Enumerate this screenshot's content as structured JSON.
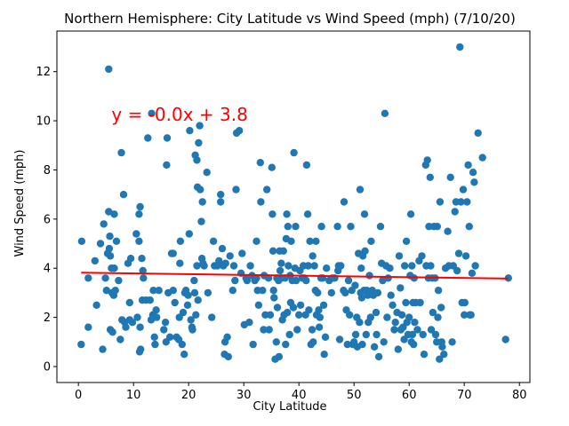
{
  "chart_data": {
    "type": "scatter",
    "title": "Northern Hemisphere: City Latitude vs Wind Speed (mph) (7/10/20)",
    "xlabel": "City Latitude",
    "ylabel": "Wind Speed (mph)",
    "xlim": [
      -3.9,
      81.9
    ],
    "ylim": [
      -0.65,
      13.65
    ],
    "xticks": [
      0,
      10,
      20,
      30,
      40,
      50,
      60,
      70,
      80
    ],
    "yticks": [
      0,
      2,
      4,
      6,
      8,
      10,
      12
    ],
    "grid": false,
    "point_color": "#1f77b4",
    "regression": {
      "equation": "y = -0.0x + 3.8",
      "color": "#ff0000",
      "annotation_x": 6,
      "annotation_y": 10,
      "line": [
        [
          0.5,
          3.82
        ],
        [
          78,
          3.58
        ]
      ]
    },
    "points": [
      [
        0.6,
        5.1
      ],
      [
        0.5,
        0.9
      ],
      [
        1.8,
        1.6
      ],
      [
        1.8,
        3.6
      ],
      [
        3.0,
        4.3
      ],
      [
        3.3,
        2.5
      ],
      [
        4.0,
        5.0
      ],
      [
        4.4,
        0.7
      ],
      [
        4.6,
        5.8
      ],
      [
        4.9,
        3.6
      ],
      [
        5.1,
        3.1
      ],
      [
        5.3,
        4.6
      ],
      [
        5.5,
        12.1
      ],
      [
        5.5,
        6.3
      ],
      [
        5.6,
        4.8
      ],
      [
        5.7,
        5.3
      ],
      [
        5.8,
        1.5
      ],
      [
        5.8,
        4.5
      ],
      [
        6.1,
        3.0
      ],
      [
        6.0,
        4.0
      ],
      [
        6.2,
        1.4
      ],
      [
        6.4,
        2.9
      ],
      [
        6.5,
        6.2
      ],
      [
        6.5,
        4.0
      ],
      [
        6.7,
        3.1
      ],
      [
        6.9,
        5.1
      ],
      [
        7.3,
        3.5
      ],
      [
        7.6,
        1.1
      ],
      [
        7.8,
        8.7
      ],
      [
        7.9,
        1.9
      ],
      [
        8.2,
        7.0
      ],
      [
        8.4,
        1.8
      ],
      [
        8.6,
        1.6
      ],
      [
        9.0,
        4.2
      ],
      [
        9.3,
        2.6
      ],
      [
        9.3,
        1.9
      ],
      [
        9.5,
        4.4
      ],
      [
        9.8,
        1.8
      ],
      [
        10.5,
        5.4
      ],
      [
        10.7,
        2.0
      ],
      [
        11.0,
        6.2
      ],
      [
        11.0,
        5.1
      ],
      [
        11.1,
        0.6
      ],
      [
        11.2,
        6.5
      ],
      [
        11.2,
        1.6
      ],
      [
        11.3,
        0.7
      ],
      [
        11.6,
        2.7
      ],
      [
        11.5,
        4.4
      ],
      [
        11.7,
        3.9
      ],
      [
        11.8,
        3.6
      ],
      [
        12.3,
        2.7
      ],
      [
        12.6,
        9.3
      ],
      [
        13.3,
        10.3
      ],
      [
        13.0,
        2.7
      ],
      [
        13.2,
        1.9
      ],
      [
        13.5,
        2.1
      ],
      [
        13.6,
        3.1
      ],
      [
        13.8,
        1.2
      ],
      [
        13.9,
        0.9
      ],
      [
        14.1,
        2.3
      ],
      [
        14.2,
        2.0
      ],
      [
        14.6,
        3.1
      ],
      [
        15.5,
        1.5
      ],
      [
        15.8,
        1.8
      ],
      [
        15.9,
        1.0
      ],
      [
        16.0,
        8.2
      ],
      [
        16.1,
        9.3
      ],
      [
        16.3,
        3.0
      ],
      [
        16.6,
        1.2
      ],
      [
        16.9,
        4.6
      ],
      [
        17.2,
        4.6
      ],
      [
        17.2,
        3.1
      ],
      [
        17.5,
        2.6
      ],
      [
        17.8,
        1.2
      ],
      [
        18.2,
        1.1
      ],
      [
        18.3,
        2.0
      ],
      [
        18.5,
        5.1
      ],
      [
        18.4,
        4.2
      ],
      [
        18.8,
        0.9
      ],
      [
        19.0,
        2.2
      ],
      [
        19.2,
        0.5
      ],
      [
        19.3,
        3.0
      ],
      [
        19.5,
        3.1
      ],
      [
        19.8,
        2.5
      ],
      [
        19.9,
        2.9
      ],
      [
        20.1,
        5.4
      ],
      [
        20.2,
        9.6
      ],
      [
        20.4,
        1.9
      ],
      [
        20.6,
        1.6
      ],
      [
        20.7,
        1.5
      ],
      [
        21.0,
        3.5
      ],
      [
        21.1,
        3.0
      ],
      [
        21.2,
        8.6
      ],
      [
        21.3,
        2.1
      ],
      [
        21.5,
        8.4
      ],
      [
        21.6,
        7.3
      ],
      [
        21.5,
        4.1
      ],
      [
        21.7,
        2.7
      ],
      [
        21.8,
        9.1
      ],
      [
        22.0,
        9.8
      ],
      [
        22.1,
        7.2
      ],
      [
        22.3,
        5.9
      ],
      [
        22.4,
        4.4
      ],
      [
        22.5,
        6.7
      ],
      [
        22.6,
        4.2
      ],
      [
        22.8,
        4.1
      ],
      [
        23.3,
        7.9
      ],
      [
        23.5,
        3.0
      ],
      [
        24.2,
        2.0
      ],
      [
        24.5,
        5.1
      ],
      [
        24.7,
        4.1
      ],
      [
        25.2,
        4.1
      ],
      [
        25.5,
        4.3
      ],
      [
        25.8,
        6.7
      ],
      [
        25.8,
        7.0
      ],
      [
        26.1,
        4.8
      ],
      [
        26.3,
        4.1
      ],
      [
        26.5,
        0.5
      ],
      [
        26.6,
        1.0
      ],
      [
        26.7,
        4.2
      ],
      [
        27.0,
        1.2
      ],
      [
        27.2,
        0.4
      ],
      [
        27.5,
        4.5
      ],
      [
        28.0,
        3.1
      ],
      [
        28.2,
        4.1
      ],
      [
        28.4,
        3.5
      ],
      [
        28.6,
        7.2
      ],
      [
        28.7,
        9.5
      ],
      [
        29.2,
        9.6
      ],
      [
        29.5,
        3.8
      ],
      [
        29.7,
        4.6
      ],
      [
        30.1,
        1.7
      ],
      [
        30.4,
        3.6
      ],
      [
        30.6,
        3.5
      ],
      [
        31.0,
        1.8
      ],
      [
        31.2,
        4.1
      ],
      [
        31.5,
        3.7
      ],
      [
        31.7,
        0.9
      ],
      [
        32.0,
        3.5
      ],
      [
        32.3,
        3.6
      ],
      [
        32.3,
        5.1
      ],
      [
        32.5,
        3.1
      ],
      [
        32.7,
        2.5
      ],
      [
        33.0,
        8.3
      ],
      [
        33.1,
        6.7
      ],
      [
        33.4,
        3.1
      ],
      [
        33.6,
        1.5
      ],
      [
        33.7,
        3.7
      ],
      [
        33.9,
        2.1
      ],
      [
        34.2,
        7.2
      ],
      [
        34.5,
        3.6
      ],
      [
        34.6,
        1.5
      ],
      [
        34.8,
        2.1
      ],
      [
        35.1,
        8.1
      ],
      [
        35.2,
        6.2
      ],
      [
        35.3,
        4.7
      ],
      [
        35.4,
        3.1
      ],
      [
        35.5,
        2.8
      ],
      [
        35.7,
        0.3
      ],
      [
        35.9,
        1.0
      ],
      [
        36.0,
        3.6
      ],
      [
        36.1,
        2.4
      ],
      [
        36.3,
        3.5
      ],
      [
        36.4,
        0.4
      ],
      [
        36.5,
        4.7
      ],
      [
        36.6,
        3.9
      ],
      [
        36.8,
        4.2
      ],
      [
        36.9,
        3.6
      ],
      [
        37.0,
        1.9
      ],
      [
        37.2,
        4.7
      ],
      [
        37.3,
        2.1
      ],
      [
        37.5,
        3.6
      ],
      [
        37.6,
        0.9
      ],
      [
        37.7,
        5.2
      ],
      [
        37.8,
        6.2
      ],
      [
        37.9,
        2.2
      ],
      [
        38.0,
        5.7
      ],
      [
        38.1,
        4.1
      ],
      [
        38.3,
        1.3
      ],
      [
        38.4,
        3.7
      ],
      [
        38.5,
        2.6
      ],
      [
        38.6,
        5.1
      ],
      [
        38.8,
        3.5
      ],
      [
        39.0,
        2.4
      ],
      [
        39.1,
        8.7
      ],
      [
        39.3,
        4.0
      ],
      [
        39.4,
        5.7
      ],
      [
        39.5,
        3.5
      ],
      [
        39.7,
        1.5
      ],
      [
        40.0,
        2.1
      ],
      [
        40.2,
        3.9
      ],
      [
        40.3,
        2.5
      ],
      [
        40.6,
        3.6
      ],
      [
        40.8,
        4.1
      ],
      [
        41.0,
        3.6
      ],
      [
        41.2,
        2.1
      ],
      [
        41.3,
        3.5
      ],
      [
        41.4,
        8.2
      ],
      [
        41.6,
        6.2
      ],
      [
        41.7,
        4.1
      ],
      [
        41.8,
        2.3
      ],
      [
        42.0,
        5.1
      ],
      [
        42.2,
        0.9
      ],
      [
        42.4,
        1.5
      ],
      [
        42.5,
        4.5
      ],
      [
        42.6,
        1.0
      ],
      [
        42.8,
        4.1
      ],
      [
        43.0,
        3.1
      ],
      [
        43.1,
        5.1
      ],
      [
        43.2,
        2.1
      ],
      [
        43.4,
        3.0
      ],
      [
        43.6,
        2.3
      ],
      [
        43.7,
        1.6
      ],
      [
        43.8,
        2.0
      ],
      [
        44.0,
        3.6
      ],
      [
        44.1,
        5.7
      ],
      [
        44.3,
        3.6
      ],
      [
        44.5,
        2.5
      ],
      [
        44.6,
        0.5
      ],
      [
        44.8,
        1.2
      ],
      [
        45.0,
        4.0
      ],
      [
        45.5,
        3.5
      ],
      [
        45.9,
        3.0
      ],
      [
        46.1,
        3.6
      ],
      [
        46.5,
        3.6
      ],
      [
        47.0,
        5.7
      ],
      [
        47.1,
        3.9
      ],
      [
        47.2,
        4.1
      ],
      [
        47.4,
        1.1
      ],
      [
        47.6,
        4.1
      ],
      [
        48.1,
        3.1
      ],
      [
        48.2,
        6.7
      ],
      [
        48.4,
        3.0
      ],
      [
        48.6,
        2.3
      ],
      [
        48.8,
        0.9
      ],
      [
        49.0,
        3.5
      ],
      [
        49.2,
        2.1
      ],
      [
        49.4,
        5.7
      ],
      [
        49.6,
        3.1
      ],
      [
        49.8,
        0.9
      ],
      [
        50.0,
        1.0
      ],
      [
        50.2,
        3.3
      ],
      [
        50.3,
        1.3
      ],
      [
        50.5,
        2.0
      ],
      [
        50.6,
        0.8
      ],
      [
        50.8,
        4.6
      ],
      [
        51.0,
        1.8
      ],
      [
        51.1,
        7.2
      ],
      [
        51.2,
        3.0
      ],
      [
        51.3,
        4.0
      ],
      [
        51.4,
        2.8
      ],
      [
        51.5,
        0.9
      ],
      [
        51.6,
        4.5
      ],
      [
        51.8,
        3.1
      ],
      [
        51.9,
        6.2
      ],
      [
        52.0,
        4.7
      ],
      [
        52.2,
        1.3
      ],
      [
        52.3,
        3.1
      ],
      [
        52.5,
        2.9
      ],
      [
        52.6,
        1.8
      ],
      [
        52.8,
        3.7
      ],
      [
        53.0,
        2.0
      ],
      [
        53.1,
        5.1
      ],
      [
        53.3,
        3.1
      ],
      [
        53.5,
        2.9
      ],
      [
        53.7,
        0.8
      ],
      [
        54.0,
        2.2
      ],
      [
        54.1,
        1.3
      ],
      [
        54.3,
        3.0
      ],
      [
        54.5,
        0.4
      ],
      [
        54.8,
        5.7
      ],
      [
        55.0,
        4.2
      ],
      [
        55.2,
        3.5
      ],
      [
        55.4,
        1.0
      ],
      [
        55.6,
        10.3
      ],
      [
        55.8,
        4.1
      ],
      [
        56.0,
        2.0
      ],
      [
        56.2,
        3.6
      ],
      [
        56.5,
        4.0
      ],
      [
        56.7,
        2.9
      ],
      [
        57.0,
        2.5
      ],
      [
        57.3,
        1.5
      ],
      [
        57.5,
        1.8
      ],
      [
        57.8,
        2.2
      ],
      [
        58.0,
        0.7
      ],
      [
        58.2,
        4.5
      ],
      [
        58.4,
        3.2
      ],
      [
        58.5,
        1.5
      ],
      [
        58.7,
        2.1
      ],
      [
        58.9,
        1.6
      ],
      [
        59.1,
        1.1
      ],
      [
        59.2,
        4.1
      ],
      [
        59.4,
        2.6
      ],
      [
        59.5,
        5.1
      ],
      [
        59.6,
        1.8
      ],
      [
        59.8,
        1.3
      ],
      [
        60.0,
        2.0
      ],
      [
        60.2,
        3.7
      ],
      [
        60.3,
        6.2
      ],
      [
        60.4,
        1.0
      ],
      [
        60.5,
        4.1
      ],
      [
        60.6,
        1.3
      ],
      [
        60.7,
        2.6
      ],
      [
        60.8,
        0.9
      ],
      [
        60.9,
        3.6
      ],
      [
        61.0,
        1.8
      ],
      [
        61.2,
        2.6
      ],
      [
        61.5,
        1.5
      ],
      [
        61.8,
        4.3
      ],
      [
        62.0,
        2.6
      ],
      [
        62.3,
        4.5
      ],
      [
        62.5,
        1.3
      ],
      [
        62.7,
        0.5
      ],
      [
        63.0,
        8.2
      ],
      [
        63.1,
        4.1
      ],
      [
        63.3,
        8.4
      ],
      [
        63.5,
        3.6
      ],
      [
        63.6,
        5.7
      ],
      [
        63.8,
        7.7
      ],
      [
        63.9,
        4.1
      ],
      [
        64.0,
        1.5
      ],
      [
        64.2,
        3.6
      ],
      [
        64.3,
        2.2
      ],
      [
        64.5,
        5.7
      ],
      [
        64.7,
        3.6
      ],
      [
        64.8,
        1.3
      ],
      [
        65.0,
        1.0
      ],
      [
        65.1,
        5.7
      ],
      [
        65.2,
        2.0
      ],
      [
        65.3,
        3.1
      ],
      [
        65.5,
        0.3
      ],
      [
        65.6,
        6.7
      ],
      [
        65.8,
        2.4
      ],
      [
        65.9,
        1.0
      ],
      [
        66.0,
        0.8
      ],
      [
        66.3,
        0.5
      ],
      [
        66.6,
        4.0
      ],
      [
        67.0,
        5.5
      ],
      [
        67.2,
        4.1
      ],
      [
        67.5,
        7.7
      ],
      [
        67.8,
        1.0
      ],
      [
        68.0,
        4.1
      ],
      [
        68.3,
        6.3
      ],
      [
        68.5,
        6.7
      ],
      [
        68.7,
        3.9
      ],
      [
        69.0,
        4.6
      ],
      [
        69.2,
        13.0
      ],
      [
        69.4,
        6.7
      ],
      [
        69.6,
        2.6
      ],
      [
        69.8,
        7.2
      ],
      [
        70.0,
        2.1
      ],
      [
        70.1,
        2.6
      ],
      [
        70.3,
        4.5
      ],
      [
        70.5,
        6.7
      ],
      [
        70.7,
        8.2
      ],
      [
        70.9,
        5.7
      ],
      [
        71.0,
        2.1
      ],
      [
        71.2,
        2.1
      ],
      [
        71.4,
        3.8
      ],
      [
        71.6,
        7.9
      ],
      [
        71.8,
        7.5
      ],
      [
        72.0,
        4.1
      ],
      [
        72.5,
        9.5
      ],
      [
        73.3,
        8.5
      ],
      [
        77.5,
        1.1
      ],
      [
        78.0,
        3.6
      ]
    ]
  }
}
